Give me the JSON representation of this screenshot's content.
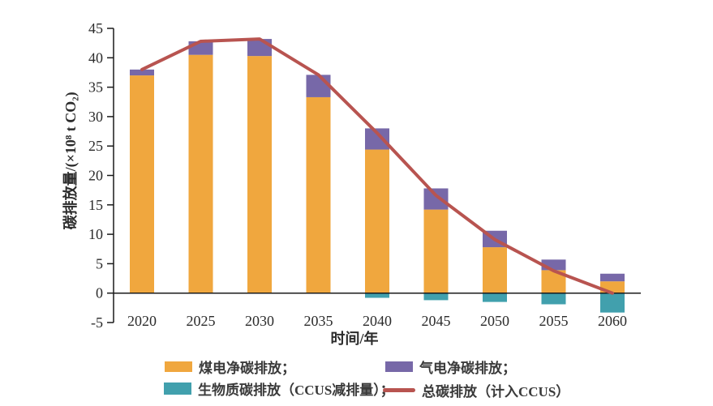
{
  "chart_data": {
    "type": "bar",
    "stacked": true,
    "categories": [
      "2020",
      "2025",
      "2030",
      "2035",
      "2040",
      "2045",
      "2050",
      "2055",
      "2060"
    ],
    "series": [
      {
        "name": "煤电净碳排放",
        "color": "#F0A73E",
        "values": [
          37.0,
          40.5,
          40.3,
          33.3,
          24.4,
          14.2,
          7.8,
          3.9,
          2.0
        ]
      },
      {
        "name": "气电净碳排放",
        "color": "#7768A8",
        "values": [
          1.0,
          2.3,
          2.9,
          3.8,
          3.6,
          3.6,
          2.8,
          1.8,
          1.3
        ]
      },
      {
        "name": "生物质碳排放（CCUS减排量）",
        "color": "#41A0AD",
        "values": [
          0,
          0,
          0,
          0,
          -0.8,
          -1.2,
          -1.5,
          -1.9,
          -3.3
        ]
      }
    ],
    "line_series": {
      "name": "总碳排放（计入CCUS）",
      "color": "#B85450",
      "values": [
        38.0,
        42.8,
        43.2,
        37.1,
        27.2,
        16.6,
        9.1,
        3.8,
        0.0
      ]
    },
    "xlabel": "时间/年",
    "ylabel": "碳排放量/(×10⁸ t CO₂)",
    "ylim": [
      -5,
      45
    ],
    "yticks": [
      45,
      40,
      35,
      30,
      25,
      20,
      15,
      10,
      5,
      0,
      -5
    ],
    "grid": false,
    "legend_position": "bottom",
    "axis_color": "#1a1a1a",
    "tick_label_color": "#2b2b2b"
  },
  "legend": {
    "items": [
      {
        "label": "煤电净碳排放；",
        "swatch": "rect",
        "color": "#F0A73E"
      },
      {
        "label": "气电净碳排放；",
        "swatch": "rect",
        "color": "#7768A8"
      },
      {
        "label": "生物质碳排放（CCUS减排量）；",
        "swatch": "rect",
        "color": "#41A0AD"
      },
      {
        "label": "总碳排放（计入CCUS）",
        "swatch": "line",
        "color": "#B85450"
      }
    ]
  }
}
